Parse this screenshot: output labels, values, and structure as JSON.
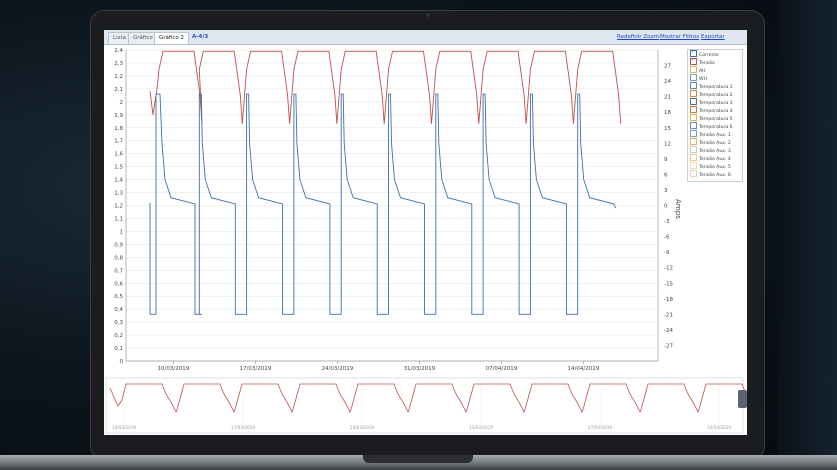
{
  "app": {
    "tabs": [
      "Lista",
      "Gráfico",
      "Gráfico 2"
    ],
    "active_tab": "Gráfico 2",
    "channel_label": "A-4/3",
    "links": [
      "Redefinir Zoom",
      "Mostrar Filtros",
      "Exportar"
    ]
  },
  "legend": {
    "items": [
      {
        "label": "Corrente",
        "checked": true,
        "color": "#3c6fb0"
      },
      {
        "label": "Tensão",
        "checked": true,
        "color": "#c0504d"
      },
      {
        "label": "AH",
        "checked": false,
        "color": "#d7b46a"
      },
      {
        "label": "WH",
        "checked": false,
        "color": "#7a9cc6"
      },
      {
        "label": "Temperatura 1",
        "checked": false,
        "color": "#5b8bc0"
      },
      {
        "label": "Temperatura 2",
        "checked": false,
        "color": "#d9893b"
      },
      {
        "label": "Temperatura 3",
        "checked": false,
        "color": "#4f6fa0"
      },
      {
        "label": "Temperatura 4",
        "checked": false,
        "color": "#c47a3a"
      },
      {
        "label": "Temperatura 5",
        "checked": false,
        "color": "#e0b050"
      },
      {
        "label": "Temperatura 6",
        "checked": false,
        "color": "#6b8ec2"
      },
      {
        "label": "Tensão Aux. 1",
        "checked": false,
        "color": "#7c9cd0"
      },
      {
        "label": "Tensão Aux. 2",
        "checked": false,
        "color": "#e8b060"
      },
      {
        "label": "Tensão Aux. 3",
        "checked": false,
        "color": "#c8c8c8"
      },
      {
        "label": "Tensão Aux. 4",
        "checked": false,
        "color": "#f0c890"
      },
      {
        "label": "Tensão Aux. 5",
        "checked": false,
        "color": "#f5d8b0"
      },
      {
        "label": "Tensão Aux. 6",
        "checked": false,
        "color": "#e9d0b5"
      }
    ]
  },
  "chart_data": [
    {
      "type": "line",
      "title": "",
      "y_left": {
        "ticks": [
          "0",
          "0,1",
          "0,2",
          "0,3",
          "0,4",
          "0,5",
          "0,6",
          "0,7",
          "0,8",
          "0,9",
          "1",
          "1,1",
          "1,2",
          "1,3",
          "1,4",
          "1,5",
          "1,6",
          "1,7",
          "1,8",
          "1,9",
          "2",
          "2,1",
          "2,2",
          "2,3",
          "2,4"
        ],
        "range": [
          0,
          2.4
        ]
      },
      "y_right": {
        "label": "Amps",
        "ticks": [
          "27",
          "24",
          "21",
          "18",
          "15",
          "12",
          "9",
          "6",
          "3",
          "0",
          "-3",
          "-6",
          "-9",
          "-12",
          "-15",
          "-18",
          "-21",
          "-24",
          "-27"
        ],
        "range": [
          -30,
          30
        ]
      },
      "x_ticks": [
        "10/03/2019",
        "17/03/2019",
        "24/03/2019",
        "31/03/2019",
        "07/04/2019",
        "14/04/2019"
      ],
      "x_range_days": [
        0,
        42
      ],
      "cycles": 10,
      "series": [
        {
          "name": "Tensão",
          "axis": "left",
          "color": "#c0504d",
          "min": 1.83,
          "max": 2.39
        },
        {
          "name": "Corrente",
          "axis": "right",
          "color": "#3c6fb0",
          "charge_level": 21.5,
          "rest_level": 0,
          "discharge_level": -21
        }
      ],
      "grid": true
    },
    {
      "type": "line",
      "title": "",
      "x_ticks": [
        "10/03/2019",
        "17/03/2019",
        "24/03/2019",
        "31/03/2019",
        "07/04/2019",
        "14/04/2019"
      ],
      "series": [
        {
          "name": "Tensão",
          "color": "#c0504d"
        }
      ]
    }
  ]
}
